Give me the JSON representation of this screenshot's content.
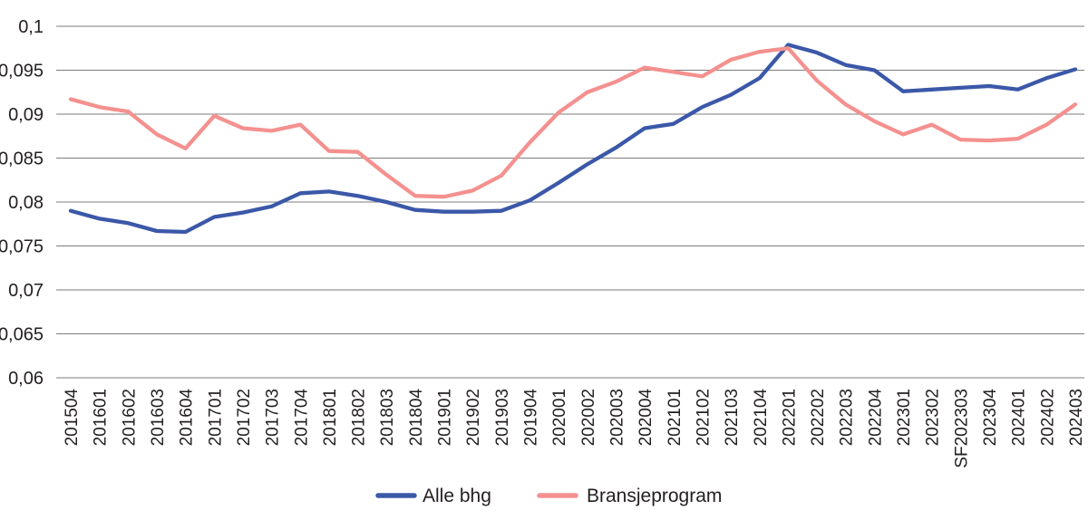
{
  "figure": {
    "legend": [
      {
        "label": "Alle bhg",
        "color": "#3b58a8"
      },
      {
        "label": "Bransjeprogram",
        "color": "#f4918f"
      }
    ]
  },
  "chart_data": {
    "type": "line",
    "categories": [
      "201504",
      "201601",
      "201602",
      "201603",
      "201604",
      "201701",
      "201702",
      "201703",
      "201704",
      "201801",
      "201802",
      "201803",
      "201804",
      "201901",
      "201902",
      "201903",
      "201904",
      "202001",
      "202002",
      "202003",
      "202004",
      "202101",
      "202102",
      "202103",
      "202104",
      "202201",
      "202202",
      "202203",
      "202204",
      "202301",
      "202302",
      "SF202303",
      "202304",
      "202401",
      "202402",
      "202403"
    ],
    "series": [
      {
        "name": "Alle bhg",
        "color": "#3b58a8",
        "values": [
          0.079,
          0.0781,
          0.0776,
          0.0767,
          0.0766,
          0.0783,
          0.0788,
          0.0795,
          0.081,
          0.0812,
          0.0807,
          0.08,
          0.0791,
          0.0789,
          0.0789,
          0.079,
          0.0802,
          0.0822,
          0.0843,
          0.0862,
          0.0884,
          0.0889,
          0.0908,
          0.0922,
          0.0941,
          0.0979,
          0.097,
          0.0956,
          0.095,
          0.0926,
          0.0928,
          0.093,
          0.0932,
          0.0928,
          0.0941,
          0.0951
        ]
      },
      {
        "name": "Bransjeprogram",
        "color": "#f4918f",
        "values": [
          0.0917,
          0.0908,
          0.0903,
          0.0877,
          0.0861,
          0.0898,
          0.0884,
          0.0881,
          0.0888,
          0.0858,
          0.0857,
          0.0831,
          0.0807,
          0.0806,
          0.0813,
          0.083,
          0.0868,
          0.0902,
          0.0925,
          0.0937,
          0.0953,
          0.0948,
          0.0943,
          0.0962,
          0.0971,
          0.0975,
          0.0938,
          0.0911,
          0.0892,
          0.0877,
          0.0888,
          0.0871,
          0.087,
          0.0872,
          0.0888,
          0.0911
        ]
      }
    ],
    "y_ticks": [
      {
        "value": 0.1,
        "label": "0,1"
      },
      {
        "value": 0.095,
        "label": "0,095"
      },
      {
        "value": 0.09,
        "label": "0,09"
      },
      {
        "value": 0.085,
        "label": "0,085"
      },
      {
        "value": 0.08,
        "label": "0,08"
      },
      {
        "value": 0.075,
        "label": "0,075"
      },
      {
        "value": 0.07,
        "label": "0,07"
      },
      {
        "value": 0.065,
        "label": "0,065"
      },
      {
        "value": 0.06,
        "label": "0,06"
      }
    ],
    "ylim": [
      0.06,
      0.1
    ],
    "grid": "horizontal",
    "legend_position": "bottom",
    "colors": {
      "text": "#231f20",
      "gridline": "#7d7d7d"
    }
  }
}
